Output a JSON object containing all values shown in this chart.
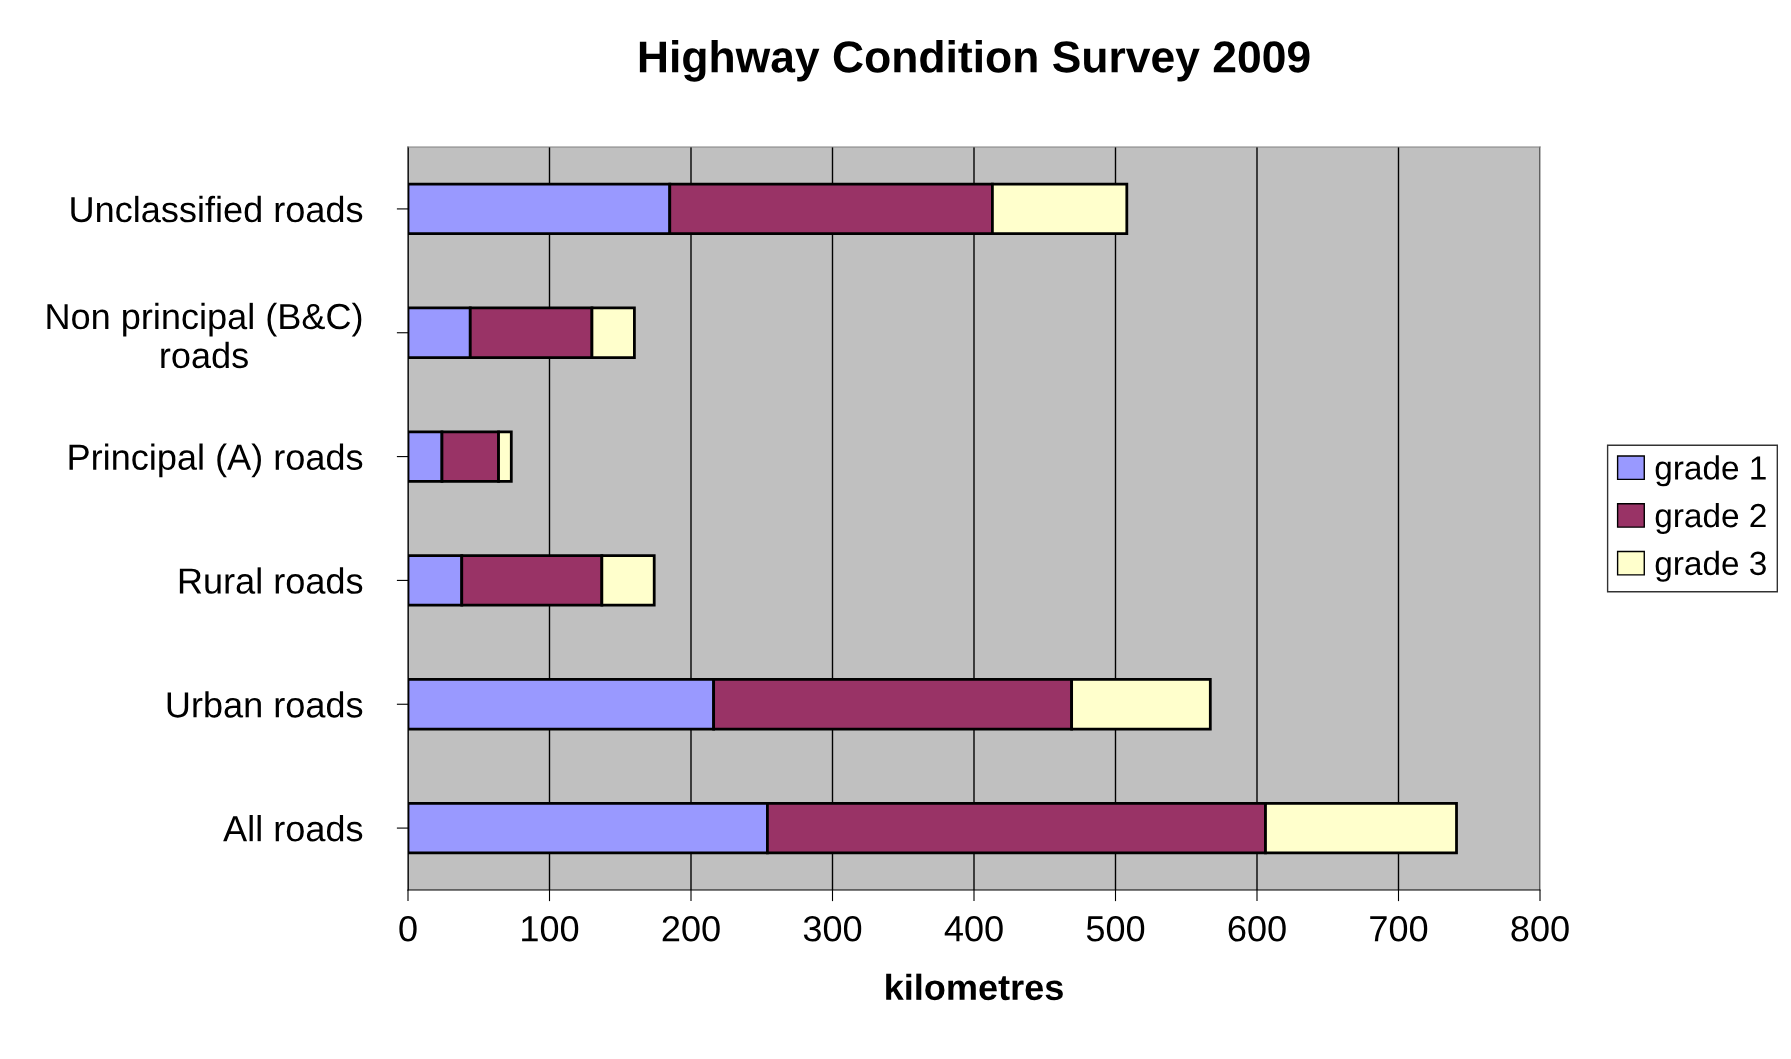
{
  "chart_data": {
    "type": "bar",
    "orientation": "horizontal",
    "stacked": true,
    "title": "Highway Condition Survey 2009",
    "xlabel": "kilometres",
    "categories": [
      "Unclassified roads",
      "Non principal (B&C)\nroads",
      "Principal (A) roads",
      "Rural roads",
      "Urban roads",
      "All roads"
    ],
    "series": [
      {
        "name": "grade 1",
        "color": "#9999ff",
        "values": [
          185,
          44,
          24,
          38,
          216,
          254
        ]
      },
      {
        "name": "grade 2",
        "color": "#993366",
        "values": [
          228,
          86,
          40,
          99,
          253,
          352
        ]
      },
      {
        "name": "grade 3",
        "color": "#ffffcc",
        "values": [
          95,
          30,
          9,
          37,
          98,
          135
        ]
      }
    ],
    "xlim": [
      0,
      800
    ],
    "xticks": [
      0,
      100,
      200,
      300,
      400,
      500,
      600,
      700,
      800
    ],
    "grid": "x",
    "legend": "right"
  }
}
